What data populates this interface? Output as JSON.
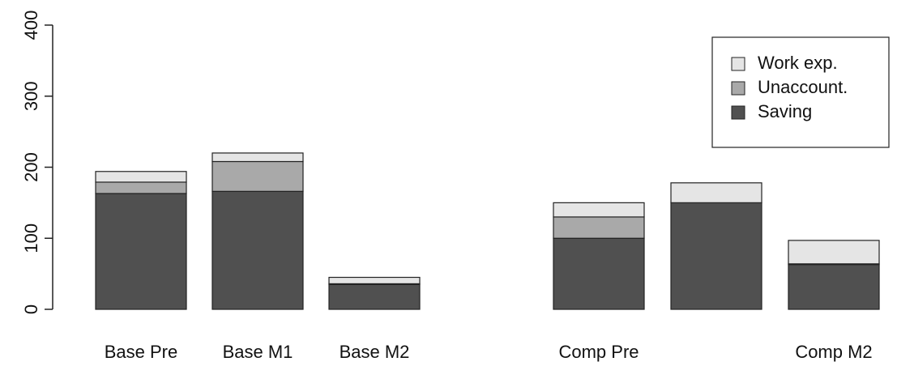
{
  "chart_data": {
    "type": "bar",
    "stacked": true,
    "categories": [
      "Base Pre",
      "Base M1",
      "Base M2",
      "Comp Pre",
      null,
      "Comp M2"
    ],
    "series": [
      {
        "name": "Saving",
        "color": "#505050",
        "values": [
          163,
          166,
          35,
          100,
          150,
          63
        ]
      },
      {
        "name": "Unaccount.",
        "color": "#a9a9a9",
        "values": [
          16,
          42,
          1,
          30,
          0,
          1
        ]
      },
      {
        "name": "Work exp.",
        "color": "#e5e5e5",
        "values": [
          15,
          12,
          9,
          20,
          28,
          33
        ]
      }
    ],
    "ylim": [
      0,
      400
    ],
    "yticks": [
      0,
      100,
      200,
      300,
      400
    ],
    "grid": false,
    "legend": "top-right"
  }
}
